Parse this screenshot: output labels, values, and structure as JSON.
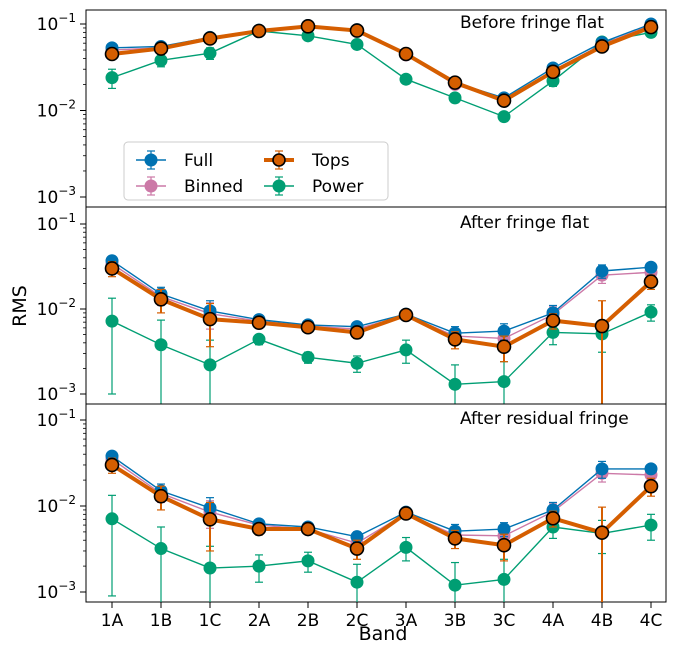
{
  "figure": {
    "ylabel": "RMS",
    "xlabel": "Band"
  },
  "legend": {
    "placement": "lower-left of top panel",
    "entries": [
      {
        "label": "Full",
        "series": "full"
      },
      {
        "label": "Tops",
        "series": "tops"
      },
      {
        "label": "Binned",
        "series": "binned"
      },
      {
        "label": "Power",
        "series": "power"
      }
    ]
  },
  "styles": {
    "full": {
      "color": "#0072B2",
      "edge": "#0072B2"
    },
    "binned": {
      "color": "#CC79A7",
      "edge": "#CC79A7"
    },
    "tops": {
      "color": "#D55E00",
      "edge": "#000000"
    },
    "power": {
      "color": "#009E73",
      "edge": "#009E73"
    }
  },
  "chart_data": [
    {
      "type": "line",
      "title": "Before fringe flat",
      "yscale": "log",
      "ylim": [
        0.001,
        0.1
      ],
      "ytick_labels": [
        "10^-1",
        "10^-2",
        "10^-3"
      ],
      "categories": [
        "1A",
        "1B",
        "1C",
        "2A",
        "2B",
        "2C",
        "3A",
        "3B",
        "3C",
        "4A",
        "4B",
        "4C"
      ],
      "series": [
        {
          "name": "Full",
          "key": "full",
          "values": [
            0.053,
            0.055,
            0.07,
            0.085,
            0.096,
            0.086,
            0.045,
            0.021,
            0.014,
            0.031,
            0.061,
            0.1
          ],
          "err": [
            0.003,
            0.003,
            0.004,
            0.004,
            0.004,
            0.004,
            0.002,
            0.001,
            0.001,
            0.002,
            0.004,
            0.006
          ]
        },
        {
          "name": "Binned",
          "key": "binned",
          "values": [
            0.05,
            0.053,
            0.068,
            0.084,
            0.095,
            0.085,
            0.044,
            0.02,
            0.013,
            0.029,
            0.058,
            0.097
          ],
          "err": [
            0.003,
            0.003,
            0.004,
            0.004,
            0.004,
            0.004,
            0.002,
            0.001,
            0.001,
            0.002,
            0.004,
            0.006
          ]
        },
        {
          "name": "Tops",
          "key": "tops",
          "values": [
            0.045,
            0.052,
            0.068,
            0.083,
            0.094,
            0.084,
            0.045,
            0.021,
            0.013,
            0.028,
            0.055,
            0.092
          ],
          "err": [
            0.005,
            0.004,
            0.005,
            0.004,
            0.006,
            0.005,
            0.003,
            0.002,
            0.001,
            0.003,
            0.005,
            0.008
          ]
        },
        {
          "name": "Power",
          "key": "power",
          "values": [
            0.024,
            0.038,
            0.046,
            0.083,
            0.073,
            0.058,
            0.023,
            0.014,
            0.0085,
            0.022,
            0.062,
            0.08
          ],
          "err": [
            0.006,
            0.006,
            0.007,
            0.006,
            0.006,
            0.006,
            0.002,
            0.001,
            0.0008,
            0.003,
            0.006,
            0.008
          ]
        }
      ]
    },
    {
      "type": "line",
      "title": "After fringe flat",
      "yscale": "log",
      "ylim": [
        0.0009,
        0.1
      ],
      "ytick_labels": [
        "10^-1",
        "10^-2",
        "10^-3"
      ],
      "categories": [
        "1A",
        "1B",
        "1C",
        "2A",
        "2B",
        "2C",
        "3A",
        "3B",
        "3C",
        "4A",
        "4B",
        "4C"
      ],
      "series": [
        {
          "name": "Full",
          "key": "full",
          "values": [
            0.037,
            0.015,
            0.0095,
            0.0075,
            0.0065,
            0.0062,
            0.0087,
            0.0052,
            0.0055,
            0.009,
            0.028,
            0.031
          ],
          "err": [
            0.005,
            0.003,
            0.003,
            0.001,
            0.0008,
            0.0007,
            0.001,
            0.001,
            0.0012,
            0.002,
            0.005,
            0.003
          ]
        },
        {
          "name": "Binned",
          "key": "binned",
          "values": [
            0.034,
            0.014,
            0.0088,
            0.0072,
            0.0063,
            0.0058,
            0.0085,
            0.0048,
            0.0045,
            0.0086,
            0.025,
            0.027
          ],
          "err": [
            0.005,
            0.003,
            0.003,
            0.001,
            0.0008,
            0.0007,
            0.001,
            0.001,
            0.0012,
            0.002,
            0.005,
            0.003
          ]
        },
        {
          "name": "Tops",
          "key": "tops",
          "values": [
            0.03,
            0.013,
            0.0076,
            0.0069,
            0.0061,
            0.0053,
            0.0085,
            0.0044,
            0.0036,
            0.0073,
            0.0063,
            0.021
          ],
          "err": [
            0.006,
            0.004,
            0.004,
            0.001,
            0.0008,
            0.0008,
            0.001,
            0.001,
            0.0012,
            0.0015,
            0.0062,
            0.004
          ]
        },
        {
          "name": "Power",
          "key": "power",
          "values": [
            0.0072,
            0.0038,
            0.0022,
            0.0044,
            0.0027,
            0.0023,
            0.0033,
            0.0013,
            0.0014,
            0.0053,
            0.0051,
            0.0092
          ],
          "err": [
            0.0062,
            0.0036,
            0.0021,
            0.0006,
            0.0004,
            0.0005,
            0.001,
            0.0009,
            0.001,
            0.0015,
            0.002,
            0.002
          ]
        }
      ]
    },
    {
      "type": "line",
      "title": "After residual fringe",
      "yscale": "log",
      "ylim": [
        0.0008,
        0.1
      ],
      "ytick_labels": [
        "10^-1",
        "10^-2",
        "10^-3"
      ],
      "categories": [
        "1A",
        "1B",
        "1C",
        "2A",
        "2B",
        "2C",
        "3A",
        "3B",
        "3C",
        "4A",
        "4B",
        "4C"
      ],
      "series": [
        {
          "name": "Full",
          "key": "full",
          "values": [
            0.038,
            0.015,
            0.0095,
            0.0062,
            0.0057,
            0.0044,
            0.0085,
            0.0051,
            0.0054,
            0.009,
            0.027,
            0.027
          ],
          "err": [
            0.005,
            0.003,
            0.003,
            0.0008,
            0.0007,
            0.0006,
            0.001,
            0.001,
            0.001,
            0.002,
            0.006,
            0.003
          ]
        },
        {
          "name": "Binned",
          "key": "binned",
          "values": [
            0.035,
            0.014,
            0.0085,
            0.006,
            0.0054,
            0.0037,
            0.0082,
            0.0046,
            0.0045,
            0.0086,
            0.024,
            0.023
          ],
          "err": [
            0.005,
            0.003,
            0.003,
            0.0008,
            0.0007,
            0.0006,
            0.001,
            0.001,
            0.001,
            0.002,
            0.005,
            0.003
          ]
        },
        {
          "name": "Tops",
          "key": "tops",
          "values": [
            0.03,
            0.013,
            0.007,
            0.0054,
            0.0054,
            0.0032,
            0.0082,
            0.0042,
            0.0035,
            0.0072,
            0.0049,
            0.017
          ],
          "err": [
            0.006,
            0.004,
            0.004,
            0.0008,
            0.0007,
            0.0008,
            0.001,
            0.001,
            0.0012,
            0.0015,
            0.0048,
            0.004
          ]
        },
        {
          "name": "Power",
          "key": "power",
          "values": [
            0.0071,
            0.0032,
            0.0019,
            0.002,
            0.0023,
            0.0013,
            0.0033,
            0.0012,
            0.0014,
            0.0057,
            0.0048,
            0.006
          ],
          "err": [
            0.0062,
            0.0025,
            0.0015,
            0.0007,
            0.0006,
            0.0008,
            0.001,
            0.001,
            0.001,
            0.0015,
            0.002,
            0.002
          ]
        }
      ]
    }
  ]
}
